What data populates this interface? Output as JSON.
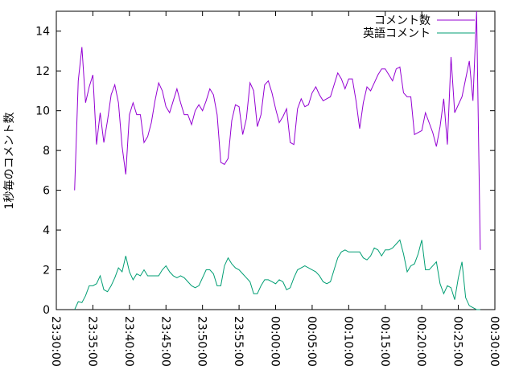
{
  "chart_data": {
    "type": "line",
    "ylabel": "1秒毎のコメント数",
    "x": [
      "23:32:30",
      "23:33:00",
      "23:33:30",
      "23:34:00",
      "23:34:30",
      "23:35:00",
      "23:35:30",
      "23:36:00",
      "23:36:30",
      "23:37:00",
      "23:37:30",
      "23:38:00",
      "23:38:30",
      "23:39:00",
      "23:39:30",
      "23:40:00",
      "23:40:30",
      "23:41:00",
      "23:41:30",
      "23:42:00",
      "23:42:30",
      "23:43:00",
      "23:43:30",
      "23:44:00",
      "23:44:30",
      "23:45:00",
      "23:45:30",
      "23:46:00",
      "23:46:30",
      "23:47:00",
      "23:47:30",
      "23:48:00",
      "23:48:30",
      "23:49:00",
      "23:49:30",
      "23:50:00",
      "23:50:30",
      "23:51:00",
      "23:51:30",
      "23:52:00",
      "23:52:30",
      "23:53:00",
      "23:53:30",
      "23:54:00",
      "23:54:30",
      "23:55:00",
      "23:55:30",
      "23:56:00",
      "23:56:30",
      "23:57:00",
      "23:57:30",
      "23:58:00",
      "23:58:30",
      "23:59:00",
      "23:59:30",
      "00:00:00",
      "00:00:30",
      "00:01:00",
      "00:01:30",
      "00:02:00",
      "00:02:30",
      "00:03:00",
      "00:03:30",
      "00:04:00",
      "00:04:30",
      "00:05:00",
      "00:05:30",
      "00:06:00",
      "00:06:30",
      "00:07:00",
      "00:07:30",
      "00:08:00",
      "00:08:30",
      "00:09:00",
      "00:09:30",
      "00:10:00",
      "00:10:30",
      "00:11:00",
      "00:11:30",
      "00:12:00",
      "00:12:30",
      "00:13:00",
      "00:13:30",
      "00:14:00",
      "00:14:30",
      "00:15:00",
      "00:15:30",
      "00:16:00",
      "00:16:30",
      "00:17:00",
      "00:17:30",
      "00:18:00",
      "00:18:30",
      "00:19:00",
      "00:19:30",
      "00:20:00",
      "00:20:30",
      "00:21:00",
      "00:21:30",
      "00:22:00",
      "00:22:30",
      "00:23:00",
      "00:23:30",
      "00:24:00",
      "00:24:30",
      "00:25:00",
      "00:25:30",
      "00:26:00",
      "00:26:30",
      "00:27:00",
      "00:27:30",
      "00:28:00"
    ],
    "series": [
      {
        "name": "コメント数",
        "color": "#9400d3",
        "values": [
          6.0,
          11.5,
          13.2,
          10.4,
          11.2,
          11.8,
          8.3,
          9.9,
          8.4,
          9.5,
          10.8,
          11.3,
          10.4,
          8.2,
          6.8,
          9.8,
          10.4,
          9.8,
          9.8,
          8.4,
          8.7,
          9.4,
          10.5,
          11.4,
          11.0,
          10.2,
          9.9,
          10.5,
          11.1,
          10.4,
          9.8,
          9.8,
          9.3,
          10.0,
          10.3,
          10.0,
          10.5,
          11.1,
          10.8,
          9.8,
          7.4,
          7.3,
          7.6,
          9.5,
          10.3,
          10.2,
          8.8,
          9.6,
          11.4,
          11.0,
          9.2,
          9.8,
          11.3,
          11.5,
          10.9,
          10.1,
          9.4,
          9.7,
          10.1,
          8.4,
          8.3,
          10.1,
          10.6,
          10.2,
          10.3,
          10.9,
          11.2,
          10.8,
          10.5,
          10.6,
          10.7,
          11.3,
          11.9,
          11.6,
          11.1,
          11.6,
          11.6,
          10.5,
          9.1,
          10.4,
          11.2,
          11.0,
          11.4,
          11.8,
          12.1,
          12.1,
          11.8,
          11.5,
          12.1,
          12.2,
          10.9,
          10.7,
          10.7,
          8.8,
          8.9,
          9.0,
          9.9,
          9.4,
          8.9,
          8.2,
          9.2,
          10.6,
          8.3,
          12.7,
          9.9,
          10.3,
          10.7,
          11.6,
          12.5,
          10.5,
          15.0,
          3.0
        ]
      },
      {
        "name": "英語コメント",
        "color": "#009e73",
        "values": [
          0,
          0.4,
          0.35,
          0.7,
          1.2,
          1.2,
          1.3,
          1.7,
          1.0,
          0.9,
          1.2,
          1.6,
          2.1,
          1.9,
          2.7,
          1.9,
          1.5,
          1.8,
          1.7,
          2.0,
          1.7,
          1.7,
          1.7,
          1.7,
          2.0,
          2.2,
          1.9,
          1.7,
          1.6,
          1.7,
          1.6,
          1.4,
          1.2,
          1.1,
          1.2,
          1.6,
          2.0,
          2.0,
          1.8,
          1.2,
          1.2,
          2.2,
          2.6,
          2.3,
          2.1,
          2.0,
          1.8,
          1.6,
          1.4,
          0.8,
          0.8,
          1.2,
          1.5,
          1.5,
          1.4,
          1.3,
          1.5,
          1.4,
          1.0,
          1.1,
          1.6,
          2.0,
          2.1,
          2.2,
          2.1,
          2.0,
          1.9,
          1.7,
          1.4,
          1.3,
          1.4,
          2.0,
          2.6,
          2.9,
          3.0,
          2.9,
          2.9,
          2.9,
          2.9,
          2.6,
          2.5,
          2.7,
          3.1,
          3.0,
          2.7,
          3.0,
          3.0,
          3.1,
          3.3,
          3.5,
          2.8,
          1.9,
          2.2,
          2.3,
          2.8,
          3.5,
          2.0,
          2.0,
          2.2,
          2.4,
          1.3,
          0.8,
          1.2,
          1.1,
          0.5,
          1.6,
          2.4,
          0.6,
          0.2,
          0.1,
          0,
          0
        ]
      }
    ],
    "xlim": [
      "23:30:00",
      "00:30:00"
    ],
    "xticks": [
      "23:30:00",
      "23:35:00",
      "23:40:00",
      "23:45:00",
      "23:50:00",
      "23:55:00",
      "00:00:00",
      "00:05:00",
      "00:10:00",
      "00:15:00",
      "00:20:00",
      "00:25:00",
      "00:30:00"
    ],
    "ylim": [
      0,
      15
    ],
    "yticks": [
      0,
      2,
      4,
      6,
      8,
      10,
      12,
      14
    ],
    "legend": "upper right"
  }
}
